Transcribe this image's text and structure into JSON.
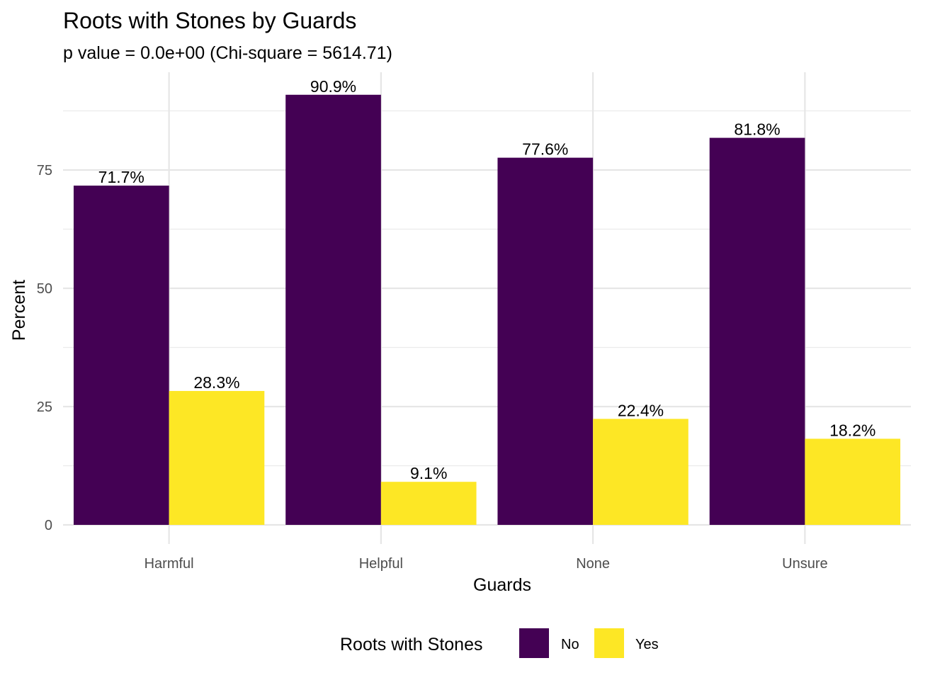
{
  "chart_data": {
    "type": "bar",
    "title": "Roots with Stones by Guards",
    "subtitle": "p value = 0.0e+00 (Chi-square = 5614.71)",
    "xlabel": "Guards",
    "ylabel": "Percent",
    "categories": [
      "Harmful",
      "Helpful",
      "None",
      "Unsure"
    ],
    "series": [
      {
        "name": "No",
        "color": "#440154",
        "values": [
          71.7,
          90.9,
          77.6,
          81.8
        ],
        "labels": [
          "71.7%",
          "90.9%",
          "77.6%",
          "81.8%"
        ]
      },
      {
        "name": "Yes",
        "color": "#FDE725",
        "values": [
          28.3,
          9.1,
          22.4,
          18.2
        ],
        "labels": [
          "28.3%",
          "9.1%",
          "22.4%",
          "18.2%"
        ]
      }
    ],
    "ylim": [
      0,
      95
    ],
    "yticks": [
      0,
      25,
      50,
      75
    ],
    "ytick_labels": [
      "0",
      "25",
      "50",
      "75"
    ],
    "grid": true,
    "legend": {
      "title": "Roots with Stones",
      "position": "bottom"
    }
  }
}
